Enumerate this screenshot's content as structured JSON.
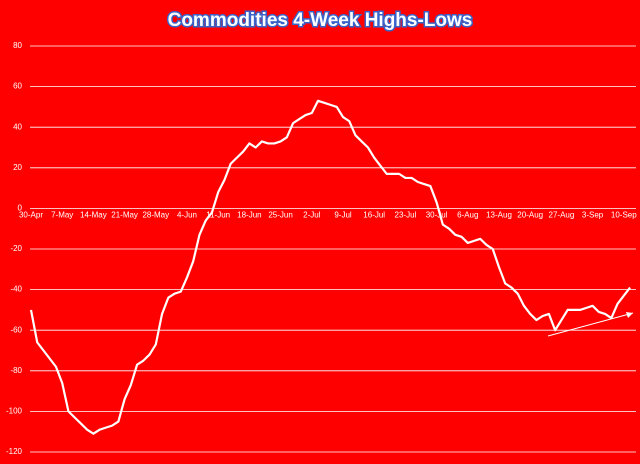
{
  "chart_data": {
    "type": "line",
    "title": "Commodities 4-Week Highs-Lows",
    "categories": [
      "30-Apr",
      null,
      null,
      null,
      null,
      "7-May",
      null,
      null,
      null,
      null,
      "14-May",
      null,
      null,
      null,
      null,
      "21-May",
      null,
      null,
      null,
      null,
      "28-May",
      null,
      null,
      null,
      null,
      "4-Jun",
      null,
      null,
      null,
      null,
      "11-Jun",
      null,
      null,
      null,
      null,
      "18-Jun",
      null,
      null,
      null,
      null,
      "25-Jun",
      null,
      null,
      null,
      null,
      "2-Jul",
      null,
      null,
      null,
      null,
      "9-Jul",
      null,
      null,
      null,
      null,
      "16-Jul",
      null,
      null,
      null,
      null,
      "23-Jul",
      null,
      null,
      null,
      null,
      "30-Jul",
      null,
      null,
      null,
      null,
      "6-Aug",
      null,
      null,
      null,
      null,
      "13-Aug",
      null,
      null,
      null,
      null,
      "20-Aug",
      null,
      null,
      null,
      null,
      "27-Aug",
      null,
      null,
      null,
      null,
      "3-Sep",
      null,
      null,
      null,
      null,
      "10-Sep",
      null
    ],
    "values": [
      -50,
      -66,
      -70,
      -74,
      -78,
      -86,
      -100,
      -103,
      -106,
      -109,
      -111,
      -109,
      -108,
      -107,
      -105,
      -94,
      -87,
      -77,
      -75,
      -72,
      -67,
      -52,
      -44,
      -42,
      -41,
      -34,
      -26,
      -13,
      -6,
      -2,
      8,
      14,
      22,
      25,
      28,
      32,
      30,
      33,
      32,
      32,
      33,
      35,
      42,
      44,
      46,
      47,
      53,
      52,
      51,
      50,
      45,
      43,
      36,
      33,
      30,
      25,
      21,
      17,
      17,
      17,
      15,
      15,
      13,
      12,
      11,
      3,
      -8,
      -10,
      -13,
      -14,
      -17,
      -16,
      -15,
      -18,
      -20,
      -29,
      -37,
      -39,
      -42,
      -48,
      -52,
      -55,
      -53,
      -52,
      -60,
      -55,
      -50,
      -50,
      -50,
      -49,
      -48,
      -51,
      -52,
      -54,
      -47,
      -43,
      -39
    ],
    "color": "#ffffff",
    "ylim": [
      -120,
      80
    ],
    "yticks": [
      -120,
      -100,
      -80,
      -60,
      -40,
      -20,
      0,
      20,
      40,
      60,
      80
    ],
    "grid": true
  }
}
